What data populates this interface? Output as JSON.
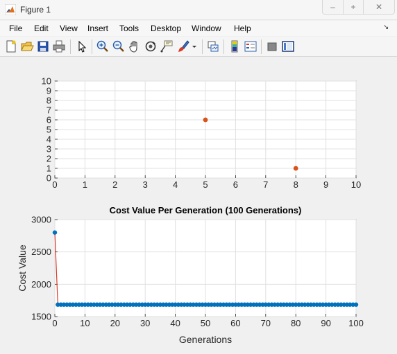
{
  "window": {
    "title": "Figure 1",
    "min_glyph": "–",
    "max_glyph": "+",
    "close_glyph": "✕"
  },
  "menu": [
    "File",
    "Edit",
    "View",
    "Insert",
    "Tools",
    "Desktop",
    "Window",
    "Help"
  ],
  "toolbar": [
    "new-figure",
    "open-file",
    "save",
    "print",
    "edit-plot",
    "zoom-in",
    "zoom-out",
    "pan",
    "rotate-3d",
    "data-cursor",
    "brush",
    "brush-menu",
    "link-plot",
    "insert-colorbar",
    "insert-legend",
    "hide-plot-tools",
    "show-plot-tools"
  ],
  "colors": {
    "scatter": "#d95319",
    "series": "#0072bd",
    "line": "#d93b2b",
    "grid": "#e0e0e0"
  },
  "chart_data": [
    {
      "type": "scatter",
      "title": "",
      "xlabel": "",
      "ylabel": "",
      "xlim": [
        0,
        10
      ],
      "ylim": [
        0,
        10
      ],
      "xticks": [
        "0",
        "1",
        "2",
        "3",
        "4",
        "5",
        "6",
        "7",
        "8",
        "9",
        "10"
      ],
      "yticks": [
        "0",
        "1",
        "2",
        "3",
        "4",
        "5",
        "6",
        "7",
        "8",
        "9",
        "10"
      ],
      "grid": true,
      "points": [
        {
          "x": 5,
          "y": 6
        },
        {
          "x": 8,
          "y": 1
        }
      ]
    },
    {
      "type": "line",
      "title": "Cost Value Per Generation (100 Generations)",
      "xlabel": "Generations",
      "ylabel": "Cost Value",
      "xlim": [
        0,
        100
      ],
      "ylim": [
        1500,
        3000
      ],
      "xticks": [
        "0",
        "10",
        "20",
        "30",
        "40",
        "50",
        "60",
        "70",
        "80",
        "90",
        "100"
      ],
      "yticks": [
        "1500",
        "2000",
        "2500",
        "3000"
      ],
      "grid": true,
      "x": [
        0,
        1,
        2,
        3,
        4,
        5,
        6,
        7,
        8,
        9,
        10,
        11,
        12,
        13,
        14,
        15,
        16,
        17,
        18,
        19,
        20,
        21,
        22,
        23,
        24,
        25,
        26,
        27,
        28,
        29,
        30,
        31,
        32,
        33,
        34,
        35,
        36,
        37,
        38,
        39,
        40,
        41,
        42,
        43,
        44,
        45,
        46,
        47,
        48,
        49,
        50,
        51,
        52,
        53,
        54,
        55,
        56,
        57,
        58,
        59,
        60,
        61,
        62,
        63,
        64,
        65,
        66,
        67,
        68,
        69,
        70,
        71,
        72,
        73,
        74,
        75,
        76,
        77,
        78,
        79,
        80,
        81,
        82,
        83,
        84,
        85,
        86,
        87,
        88,
        89,
        90,
        91,
        92,
        93,
        94,
        95,
        96,
        97,
        98,
        99,
        100
      ],
      "y": [
        2800,
        1685,
        1685,
        1685,
        1685,
        1685,
        1685,
        1685,
        1685,
        1685,
        1685,
        1685,
        1685,
        1685,
        1685,
        1685,
        1685,
        1685,
        1685,
        1685,
        1685,
        1685,
        1685,
        1685,
        1685,
        1685,
        1685,
        1685,
        1685,
        1685,
        1685,
        1685,
        1685,
        1685,
        1685,
        1685,
        1685,
        1685,
        1685,
        1685,
        1685,
        1685,
        1685,
        1685,
        1685,
        1685,
        1685,
        1685,
        1685,
        1685,
        1685,
        1685,
        1685,
        1685,
        1685,
        1685,
        1685,
        1685,
        1685,
        1685,
        1685,
        1685,
        1685,
        1685,
        1685,
        1685,
        1685,
        1685,
        1685,
        1685,
        1685,
        1685,
        1685,
        1685,
        1685,
        1685,
        1685,
        1685,
        1685,
        1685,
        1685,
        1685,
        1685,
        1685,
        1685,
        1685,
        1685,
        1685,
        1685,
        1685,
        1685,
        1685,
        1685,
        1685,
        1685,
        1685,
        1685,
        1685,
        1685,
        1685,
        1685
      ]
    }
  ]
}
